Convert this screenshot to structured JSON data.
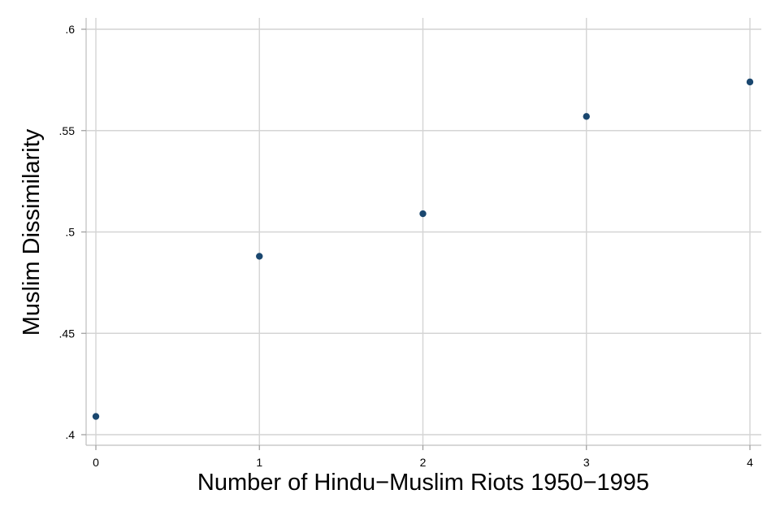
{
  "chart_data": {
    "type": "scatter",
    "title": "",
    "xlabel": "Number of Hindu−Muslim Riots 1950−1995",
    "ylabel": "Muslim Dissimilarity",
    "xlim": [
      0,
      4
    ],
    "ylim": [
      0.4,
      0.6
    ],
    "x_ticks": [
      0,
      1,
      2,
      3,
      4
    ],
    "x_tick_labels": [
      "0",
      "1",
      "2",
      "3",
      "4"
    ],
    "y_ticks": [
      0.4,
      0.45,
      0.5,
      0.55,
      0.6
    ],
    "y_tick_labels": [
      ".4",
      ".45",
      ".5",
      ".55",
      ".6"
    ],
    "grid": true,
    "marker_color": "#1a476f",
    "series": [
      {
        "x": [
          0,
          1,
          2,
          3,
          4
        ],
        "y": [
          0.409,
          0.488,
          0.509,
          0.557,
          0.574
        ]
      }
    ]
  }
}
